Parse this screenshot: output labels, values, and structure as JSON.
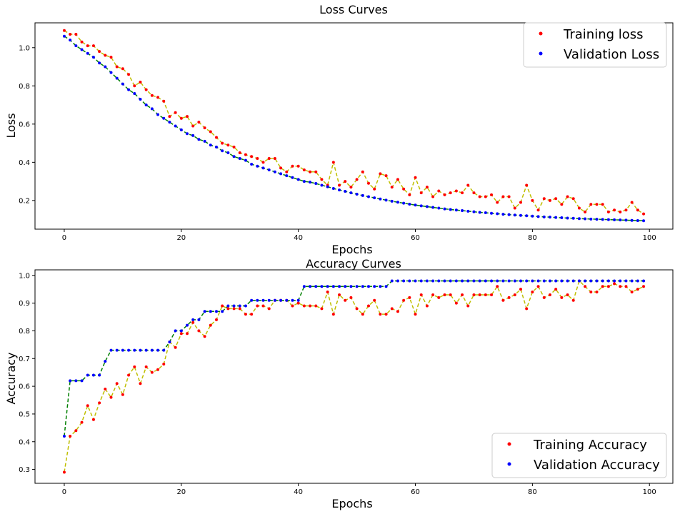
{
  "chart_data": [
    {
      "type": "line",
      "title": "Loss Curves",
      "xlabel": "Epochs",
      "ylabel": "Loss",
      "xlim": [
        -5,
        104
      ],
      "ylim": [
        0.05,
        1.13
      ],
      "xticks": [
        0,
        20,
        40,
        60,
        80,
        100
      ],
      "yticks": [
        0.2,
        0.4,
        0.6,
        0.8,
        1.0
      ],
      "xtick_labels": [
        "0",
        "20",
        "40",
        "60",
        "80",
        "100"
      ],
      "ytick_labels": [
        "0.2",
        "0.4",
        "0.6",
        "0.8",
        "1.0"
      ],
      "legend_position": "top-right",
      "grid": false,
      "series": [
        {
          "name": "Training loss",
          "marker_color": "#ff0000",
          "line_color": "#bfbf00",
          "values": [
            1.09,
            1.07,
            1.07,
            1.03,
            1.01,
            1.01,
            0.98,
            0.96,
            0.95,
            0.9,
            0.89,
            0.86,
            0.8,
            0.82,
            0.78,
            0.75,
            0.74,
            0.72,
            0.64,
            0.66,
            0.63,
            0.64,
            0.59,
            0.61,
            0.58,
            0.56,
            0.53,
            0.5,
            0.49,
            0.48,
            0.45,
            0.44,
            0.43,
            0.42,
            0.4,
            0.42,
            0.42,
            0.37,
            0.35,
            0.38,
            0.38,
            0.36,
            0.35,
            0.35,
            0.31,
            0.28,
            0.4,
            0.28,
            0.3,
            0.27,
            0.31,
            0.35,
            0.29,
            0.26,
            0.34,
            0.33,
            0.27,
            0.31,
            0.26,
            0.23,
            0.32,
            0.24,
            0.27,
            0.22,
            0.25,
            0.23,
            0.24,
            0.25,
            0.24,
            0.28,
            0.24,
            0.22,
            0.22,
            0.23,
            0.19,
            0.22,
            0.22,
            0.16,
            0.19,
            0.28,
            0.2,
            0.15,
            0.21,
            0.2,
            0.21,
            0.18,
            0.22,
            0.21,
            0.16,
            0.14,
            0.18,
            0.18,
            0.18,
            0.14,
            0.15,
            0.14,
            0.15,
            0.19,
            0.15,
            0.13
          ]
        },
        {
          "name": "Validation Loss",
          "marker_color": "#0000ff",
          "line_color": "#007f00",
          "values": [
            1.06,
            1.04,
            1.01,
            0.99,
            0.97,
            0.95,
            0.92,
            0.9,
            0.87,
            0.84,
            0.81,
            0.78,
            0.76,
            0.73,
            0.7,
            0.68,
            0.65,
            0.63,
            0.61,
            0.59,
            0.57,
            0.55,
            0.54,
            0.52,
            0.51,
            0.49,
            0.48,
            0.46,
            0.45,
            0.43,
            0.42,
            0.41,
            0.39,
            0.38,
            0.37,
            0.36,
            0.35,
            0.34,
            0.33,
            0.32,
            0.31,
            0.3,
            0.296,
            0.289,
            0.28,
            0.272,
            0.263,
            0.255,
            0.248,
            0.24,
            0.233,
            0.226,
            0.22,
            0.214,
            0.208,
            0.202,
            0.196,
            0.191,
            0.186,
            0.181,
            0.176,
            0.172,
            0.168,
            0.164,
            0.16,
            0.156,
            0.153,
            0.15,
            0.147,
            0.144,
            0.141,
            0.138,
            0.136,
            0.133,
            0.131,
            0.128,
            0.126,
            0.124,
            0.122,
            0.12,
            0.118,
            0.116,
            0.114,
            0.113,
            0.111,
            0.11,
            0.108,
            0.107,
            0.105,
            0.104,
            0.103,
            0.102,
            0.101,
            0.1,
            0.099,
            0.098,
            0.097,
            0.096,
            0.095,
            0.094
          ]
        }
      ]
    },
    {
      "type": "line",
      "title": "Accuracy Curves",
      "xlabel": "Epochs",
      "ylabel": "Accuracy",
      "xlim": [
        -5,
        104
      ],
      "ylim": [
        0.25,
        1.02
      ],
      "xticks": [
        0,
        20,
        40,
        60,
        80,
        100
      ],
      "yticks": [
        0.3,
        0.4,
        0.5,
        0.6,
        0.7,
        0.8,
        0.9,
        1.0
      ],
      "xtick_labels": [
        "0",
        "20",
        "40",
        "60",
        "80",
        "100"
      ],
      "ytick_labels": [
        "0.3",
        "0.4",
        "0.5",
        "0.6",
        "0.7",
        "0.8",
        "0.9",
        "1.0"
      ],
      "legend_position": "bottom-right",
      "grid": false,
      "series": [
        {
          "name": "Training Accuracy",
          "marker_color": "#ff0000",
          "line_color": "#bfbf00",
          "values": [
            0.29,
            0.42,
            0.44,
            0.47,
            0.53,
            0.48,
            0.54,
            0.59,
            0.56,
            0.61,
            0.57,
            0.64,
            0.67,
            0.61,
            0.67,
            0.65,
            0.66,
            0.68,
            0.76,
            0.74,
            0.79,
            0.79,
            0.83,
            0.8,
            0.78,
            0.82,
            0.84,
            0.89,
            0.88,
            0.88,
            0.88,
            0.86,
            0.86,
            0.89,
            0.89,
            0.88,
            0.91,
            0.91,
            0.91,
            0.89,
            0.9,
            0.89,
            0.89,
            0.89,
            0.88,
            0.94,
            0.86,
            0.93,
            0.91,
            0.92,
            0.88,
            0.86,
            0.89,
            0.91,
            0.86,
            0.86,
            0.88,
            0.87,
            0.91,
            0.92,
            0.86,
            0.93,
            0.89,
            0.93,
            0.92,
            0.93,
            0.93,
            0.9,
            0.93,
            0.89,
            0.93,
            0.93,
            0.93,
            0.93,
            0.96,
            0.91,
            0.92,
            0.93,
            0.95,
            0.88,
            0.94,
            0.96,
            0.92,
            0.93,
            0.95,
            0.92,
            0.93,
            0.91,
            0.98,
            0.96,
            0.94,
            0.94,
            0.96,
            0.96,
            0.97,
            0.96,
            0.96,
            0.94,
            0.95,
            0.96
          ]
        },
        {
          "name": "Validation Accuracy",
          "marker_color": "#0000ff",
          "line_color": "#007f00",
          "values": [
            0.42,
            0.62,
            0.62,
            0.62,
            0.64,
            0.64,
            0.64,
            0.69,
            0.73,
            0.73,
            0.73,
            0.73,
            0.73,
            0.73,
            0.73,
            0.73,
            0.73,
            0.73,
            0.76,
            0.8,
            0.8,
            0.82,
            0.84,
            0.84,
            0.87,
            0.87,
            0.87,
            0.87,
            0.89,
            0.89,
            0.89,
            0.89,
            0.91,
            0.91,
            0.91,
            0.91,
            0.91,
            0.91,
            0.91,
            0.91,
            0.91,
            0.96,
            0.96,
            0.96,
            0.96,
            0.96,
            0.96,
            0.96,
            0.96,
            0.96,
            0.96,
            0.96,
            0.96,
            0.96,
            0.96,
            0.96,
            0.98,
            0.98,
            0.98,
            0.98,
            0.98,
            0.98,
            0.98,
            0.98,
            0.98,
            0.98,
            0.98,
            0.98,
            0.98,
            0.98,
            0.98,
            0.98,
            0.98,
            0.98,
            0.98,
            0.98,
            0.98,
            0.98,
            0.98,
            0.98,
            0.98,
            0.98,
            0.98,
            0.98,
            0.98,
            0.98,
            0.98,
            0.98,
            0.98,
            0.98,
            0.98,
            0.98,
            0.98,
            0.98,
            0.98,
            0.98,
            0.98,
            0.98,
            0.98,
            0.98
          ]
        }
      ]
    }
  ]
}
